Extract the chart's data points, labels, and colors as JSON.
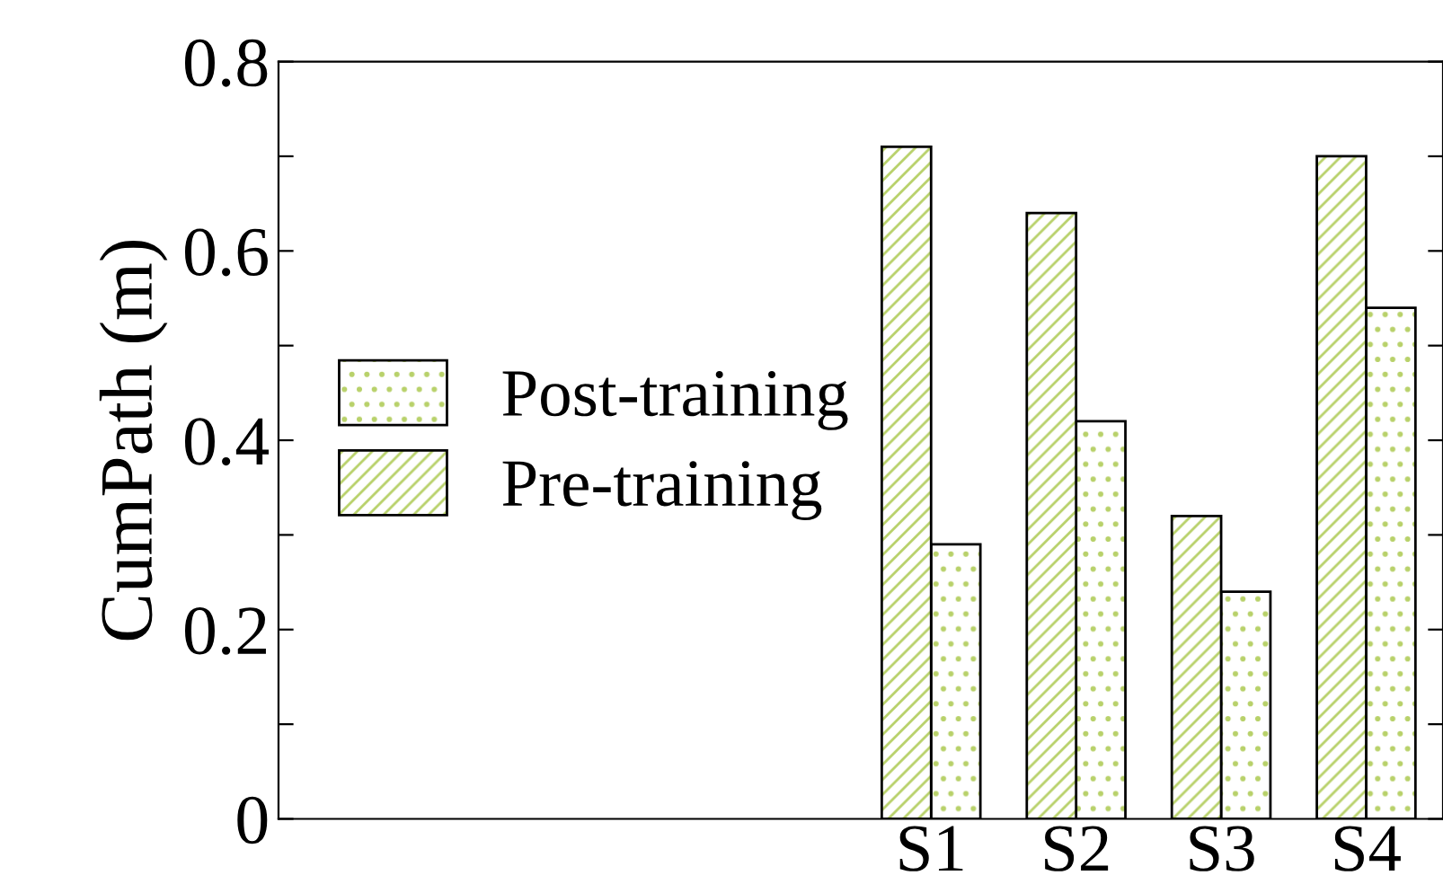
{
  "chart_data": {
    "type": "bar",
    "ylabel": "CumPath (m)",
    "categories": [
      null,
      null,
      null,
      null,
      "S1",
      "S2",
      "S3",
      "S4"
    ],
    "series": [
      {
        "name": "Post-training",
        "color": "#b8d16a",
        "values": [
          null,
          null,
          null,
          null,
          0.29,
          0.42,
          0.24,
          0.54
        ]
      },
      {
        "name": "Pre-training",
        "color": "#b8d16a",
        "values": [
          null,
          null,
          null,
          null,
          0.71,
          0.64,
          0.32,
          0.7
        ]
      }
    ],
    "ylim": [
      0,
      0.8
    ],
    "yticks": [
      0,
      {
        "value": 0.1,
        "label": null
      },
      0.2,
      {
        "value": 0.3,
        "label": null
      },
      0.4,
      {
        "value": 0.5,
        "label": null
      },
      0.6,
      {
        "value": 0.7,
        "label": null
      },
      0.8
    ],
    "legend": "left",
    "grid": false
  }
}
